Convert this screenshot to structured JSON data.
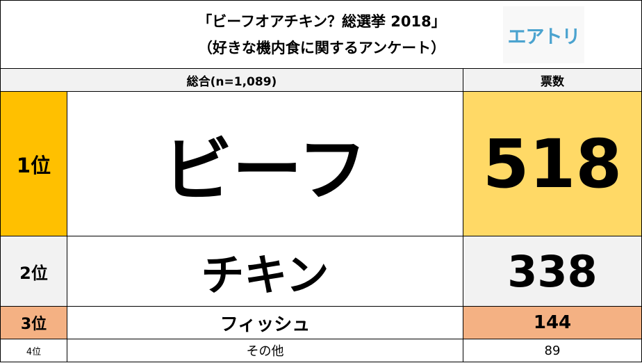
{
  "title": {
    "line1": "「ビーフオアチキン？総選挙 2018」",
    "line2": "（好きな機内食に関するアンケート）"
  },
  "logo": "エアトリ",
  "header": {
    "overall": "総合(n=1,089)",
    "votes": "票数"
  },
  "rows": [
    {
      "rank": "1位",
      "name": "ビーフ",
      "votes": "518"
    },
    {
      "rank": "2位",
      "name": "チキン",
      "votes": "338"
    },
    {
      "rank": "3位",
      "name": "フィッシュ",
      "votes": "144"
    },
    {
      "rank": "4位",
      "name": "その他",
      "votes": "89"
    }
  ],
  "colors": {
    "rank1": "#FFC000",
    "votes1": "#FFD966",
    "row2": "#F2F2F2",
    "row3": "#F4B183",
    "logo": "#4BA3CF"
  }
}
